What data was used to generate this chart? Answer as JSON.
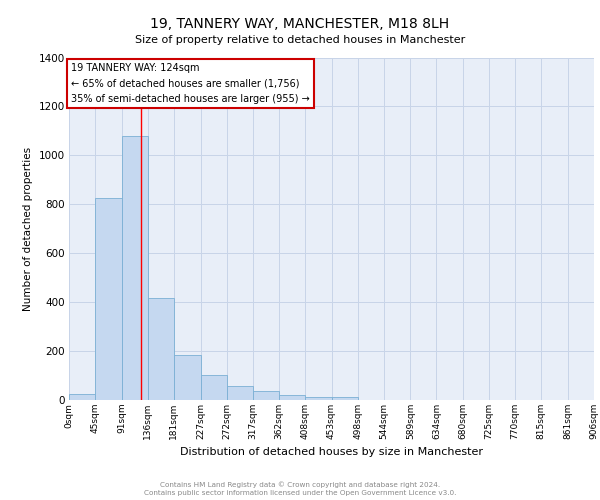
{
  "title": "19, TANNERY WAY, MANCHESTER, M18 8LH",
  "subtitle": "Size of property relative to detached houses in Manchester",
  "xlabel": "Distribution of detached houses by size in Manchester",
  "ylabel": "Number of detached properties",
  "annotation_line1": "19 TANNERY WAY: 124sqm",
  "annotation_line2": "← 65% of detached houses are smaller (1,756)",
  "annotation_line3": "35% of semi-detached houses are larger (955) →",
  "bar_values": [
    25,
    825,
    1080,
    415,
    183,
    103,
    57,
    35,
    22,
    12,
    12,
    0,
    0,
    0,
    0,
    0,
    0,
    0,
    0,
    0
  ],
  "bin_edges": [
    0,
    45,
    91,
    136,
    181,
    227,
    272,
    317,
    362,
    408,
    453,
    498,
    544,
    589,
    634,
    680,
    725,
    770,
    815,
    861,
    906
  ],
  "tick_labels": [
    "0sqm",
    "45sqm",
    "91sqm",
    "136sqm",
    "181sqm",
    "227sqm",
    "272sqm",
    "317sqm",
    "362sqm",
    "408sqm",
    "453sqm",
    "498sqm",
    "544sqm",
    "589sqm",
    "634sqm",
    "680sqm",
    "725sqm",
    "770sqm",
    "815sqm",
    "861sqm",
    "906sqm"
  ],
  "bar_color": "#c5d8f0",
  "bar_edge_color": "#7aafd4",
  "red_line_x": 124,
  "ylim": [
    0,
    1400
  ],
  "yticks": [
    0,
    200,
    400,
    600,
    800,
    1000,
    1200,
    1400
  ],
  "grid_color": "#c8d4e8",
  "bg_color": "#e8eef8",
  "annotation_box_color": "#ffffff",
  "annotation_box_edge": "#cc0000",
  "footer_line1": "Contains HM Land Registry data © Crown copyright and database right 2024.",
  "footer_line2": "Contains public sector information licensed under the Open Government Licence v3.0."
}
